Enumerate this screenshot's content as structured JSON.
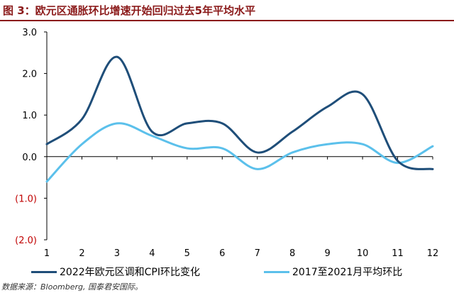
{
  "title": "图 3：欧元区通胀环比增速开始回归过去5年平均水平",
  "source": "数据来源：Bloomberg, 国泰君安国际。",
  "colors": {
    "title": "#8b1a1a",
    "series_2022": "#1f4e79",
    "series_avg": "#5bc0eb",
    "negative_tick": "#c00000",
    "axis": "#000000"
  },
  "chart_data": {
    "type": "line",
    "x": [
      1,
      2,
      3,
      4,
      5,
      6,
      7,
      8,
      9,
      10,
      11,
      12
    ],
    "xlabel": "",
    "ylabel": "",
    "ylim": [
      -2.0,
      3.0
    ],
    "y_ticks": [
      3.0,
      2.0,
      1.0,
      0.0,
      -1.0,
      -2.0
    ],
    "y_tick_labels": [
      "3.0",
      "2.0",
      "1.0",
      "0.0",
      "(1.0)",
      "(2.0)"
    ],
    "x_tick_labels": [
      "1",
      "2",
      "3",
      "4",
      "5",
      "6",
      "7",
      "8",
      "9",
      "10",
      "11",
      "12"
    ],
    "grid": false,
    "legend_position": "bottom",
    "series": [
      {
        "name": "2022年欧元区调和CPI环比变化",
        "values": [
          0.3,
          0.9,
          2.4,
          0.6,
          0.8,
          0.8,
          0.1,
          0.6,
          1.2,
          1.5,
          -0.1,
          -0.3
        ]
      },
      {
        "name": "2017至2021月平均环比",
        "values": [
          -0.6,
          0.3,
          0.8,
          0.5,
          0.2,
          0.2,
          -0.3,
          0.1,
          0.3,
          0.3,
          -0.15,
          0.25
        ]
      }
    ]
  }
}
